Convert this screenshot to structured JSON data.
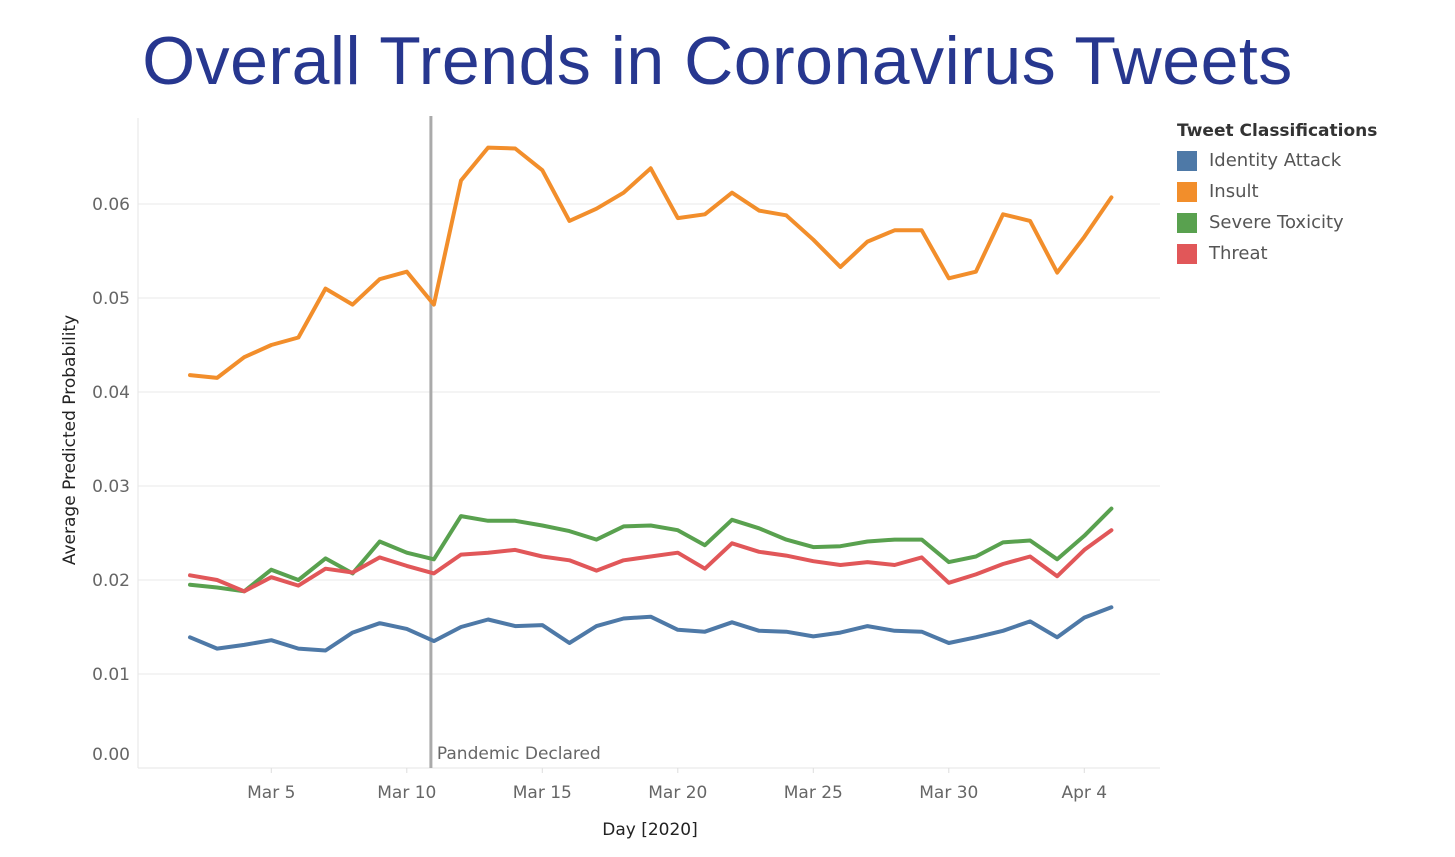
{
  "chart_data": {
    "type": "line",
    "title": "Overall Trends in Coronavirus Tweets",
    "xlabel": "Day [2020]",
    "ylabel": "Average Predicted Probability",
    "ylim": [
      0,
      0.066
    ],
    "yticks": [
      "0.00",
      "0.01",
      "0.02",
      "0.03",
      "0.04",
      "0.05",
      "0.06"
    ],
    "xticks": [
      {
        "date": "2020-03-05",
        "label": "Mar 5"
      },
      {
        "date": "2020-03-10",
        "label": "Mar 10"
      },
      {
        "date": "2020-03-15",
        "label": "Mar 15"
      },
      {
        "date": "2020-03-20",
        "label": "Mar 20"
      },
      {
        "date": "2020-03-25",
        "label": "Mar 25"
      },
      {
        "date": "2020-03-30",
        "label": "Mar 30"
      },
      {
        "date": "2020-04-04",
        "label": "Apr 4"
      }
    ],
    "x": [
      "2020-03-02",
      "2020-03-03",
      "2020-03-04",
      "2020-03-05",
      "2020-03-06",
      "2020-03-07",
      "2020-03-08",
      "2020-03-09",
      "2020-03-10",
      "2020-03-11",
      "2020-03-12",
      "2020-03-13",
      "2020-03-14",
      "2020-03-15",
      "2020-03-16",
      "2020-03-17",
      "2020-03-18",
      "2020-03-19",
      "2020-03-20",
      "2020-03-21",
      "2020-03-22",
      "2020-03-23",
      "2020-03-24",
      "2020-03-25",
      "2020-03-26",
      "2020-03-27",
      "2020-03-28",
      "2020-03-29",
      "2020-03-30",
      "2020-03-31",
      "2020-04-01",
      "2020-04-02",
      "2020-04-03",
      "2020-04-04",
      "2020-04-05"
    ],
    "series": [
      {
        "name": "Identity Attack",
        "color": "#4e79a7",
        "values": [
          0.0139,
          0.0127,
          0.0131,
          0.0136,
          0.0127,
          0.0125,
          0.0144,
          0.0154,
          0.0148,
          0.0135,
          0.015,
          0.0158,
          0.0151,
          0.0152,
          0.0133,
          0.0151,
          0.0159,
          0.0161,
          0.0147,
          0.0145,
          0.0155,
          0.0146,
          0.0145,
          0.014,
          0.0144,
          0.0151,
          0.0146,
          0.0145,
          0.0133,
          0.0139,
          0.0146,
          0.0156,
          0.0139,
          0.016,
          0.0171
        ]
      },
      {
        "name": "Insult",
        "color": "#f28e2b",
        "values": [
          0.0418,
          0.0415,
          0.0437,
          0.045,
          0.0458,
          0.051,
          0.0493,
          0.052,
          0.0528,
          0.0493,
          0.0625,
          0.066,
          0.0659,
          0.0636,
          0.0582,
          0.0595,
          0.0612,
          0.0638,
          0.0585,
          0.0589,
          0.0612,
          0.0593,
          0.0588,
          0.0562,
          0.0533,
          0.056,
          0.0572,
          0.0572,
          0.0521,
          0.0528,
          0.0589,
          0.0582,
          0.0527,
          0.0565,
          0.0607
        ]
      },
      {
        "name": "Severe Toxicity",
        "color": "#59a14f",
        "values": [
          0.0195,
          0.0192,
          0.0188,
          0.0211,
          0.02,
          0.0223,
          0.0207,
          0.0241,
          0.0229,
          0.0222,
          0.0268,
          0.0263,
          0.0263,
          0.0258,
          0.0252,
          0.0243,
          0.0257,
          0.0258,
          0.0253,
          0.0237,
          0.0264,
          0.0255,
          0.0243,
          0.0235,
          0.0236,
          0.0241,
          0.0243,
          0.0243,
          0.0219,
          0.0225,
          0.024,
          0.0242,
          0.0222,
          0.0247,
          0.0276
        ]
      },
      {
        "name": "Threat",
        "color": "#e15759",
        "values": [
          0.0205,
          0.02,
          0.0188,
          0.0203,
          0.0194,
          0.0212,
          0.0208,
          0.0224,
          0.0215,
          0.0207,
          0.0227,
          0.0229,
          0.0232,
          0.0225,
          0.0221,
          0.021,
          0.0221,
          0.0225,
          0.0229,
          0.0212,
          0.0239,
          0.023,
          0.0226,
          0.022,
          0.0216,
          0.0219,
          0.0216,
          0.0224,
          0.0197,
          0.0206,
          0.0217,
          0.0225,
          0.0204,
          0.0232,
          0.0253
        ]
      }
    ],
    "reference_line": {
      "date": "2020-03-11",
      "label": "Pandemic Declared"
    },
    "grid": true,
    "legend": {
      "title": "Tweet Classifications",
      "placement": "top-right"
    }
  }
}
